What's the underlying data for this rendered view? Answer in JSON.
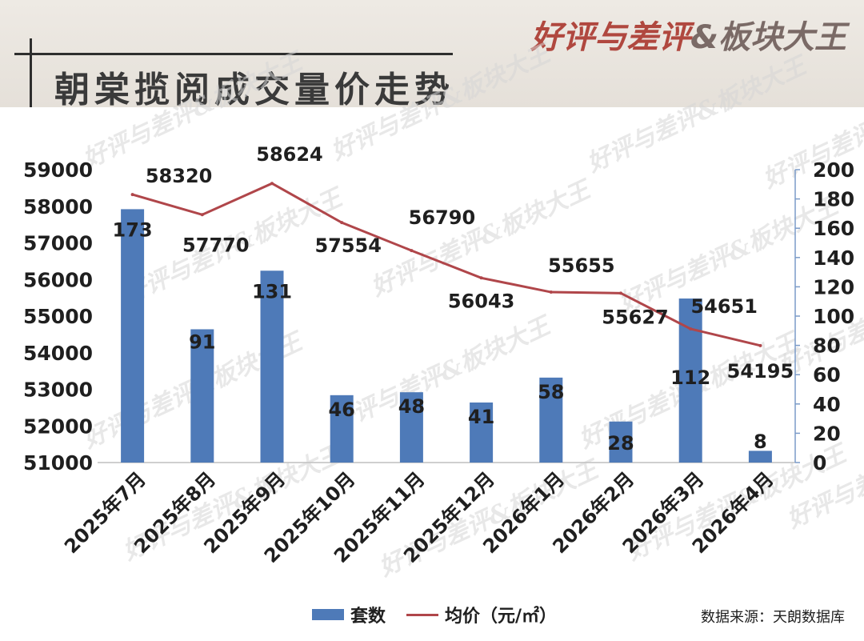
{
  "title": "朝棠揽阅成交量价走势",
  "brand": {
    "part1": "好评与差评",
    "part2": "&板块大王"
  },
  "source": "数据来源：天朗数据库",
  "colors": {
    "bar": "#4e7ab8",
    "line": "#b0464a",
    "text": "#1f1f1f"
  },
  "chart_data": {
    "type": "bar+line",
    "categories": [
      "2025年7月",
      "2025年8月",
      "2025年9月",
      "2025年10月",
      "2025年11月",
      "2025年12月",
      "2026年1月",
      "2026年2月",
      "2026年3月",
      "2026年4月"
    ],
    "series": [
      {
        "name": "套数",
        "type": "bar",
        "axis": "right",
        "values": [
          173,
          91,
          131,
          46,
          48,
          41,
          58,
          28,
          112,
          8
        ]
      },
      {
        "name": "均价（元/㎡）",
        "type": "line",
        "axis": "left",
        "values": [
          58320,
          57770,
          58624,
          57554,
          56790,
          56043,
          55655,
          55627,
          54651,
          54195
        ]
      }
    ],
    "left_axis": {
      "ylim": [
        51000,
        59000
      ],
      "ticks": [
        "51000",
        "52000",
        "53000",
        "54000",
        "55000",
        "56000",
        "57000",
        "58000",
        "59000"
      ]
    },
    "right_axis": {
      "ylim": [
        0,
        200
      ],
      "ticks": [
        "0",
        "20",
        "40",
        "60",
        "80",
        "100",
        "120",
        "140",
        "160",
        "180",
        "200"
      ]
    },
    "legend_position": "bottom"
  }
}
